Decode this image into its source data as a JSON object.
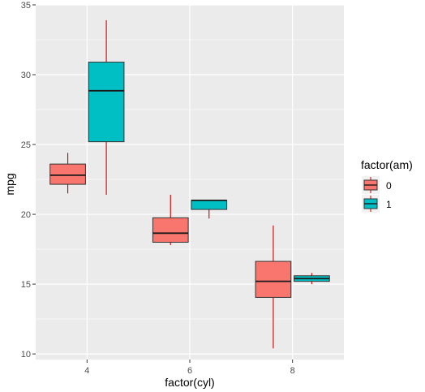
{
  "chart_data": {
    "type": "boxplot",
    "xlabel": "factor(cyl)",
    "ylabel": "mpg",
    "categories": [
      "4",
      "6",
      "8"
    ],
    "ylim": [
      9.6,
      35.0
    ],
    "yticks": [
      10,
      15,
      20,
      25,
      30,
      35
    ],
    "grid": true,
    "legend": {
      "title": "factor(am)",
      "placement": "right",
      "entries": [
        "0",
        "1"
      ]
    },
    "series": [
      {
        "name": "0",
        "color": "#F8766D",
        "boxes": [
          {
            "category": "4",
            "low": 21.5,
            "q1": 22.15,
            "median": 22.8,
            "q3": 23.6,
            "high": 24.4
          },
          {
            "category": "6",
            "low": 17.8,
            "q1": 18.0,
            "median": 18.65,
            "q3": 19.75,
            "high": 21.4
          },
          {
            "category": "8",
            "low": 10.4,
            "q1": 14.05,
            "median": 15.2,
            "q3": 16.63,
            "high": 19.2
          }
        ]
      },
      {
        "name": "1",
        "color": "#00BFC4",
        "boxes": [
          {
            "category": "4",
            "low": 21.4,
            "q1": 25.2,
            "median": 28.85,
            "q3": 30.9,
            "high": 33.9
          },
          {
            "category": "6",
            "low": 19.7,
            "q1": 20.35,
            "median": 21.0,
            "q3": 21.0,
            "high": 21.0
          },
          {
            "category": "8",
            "low": 15.0,
            "q1": 15.2,
            "median": 15.4,
            "q3": 15.6,
            "high": 15.8
          }
        ]
      }
    ]
  }
}
